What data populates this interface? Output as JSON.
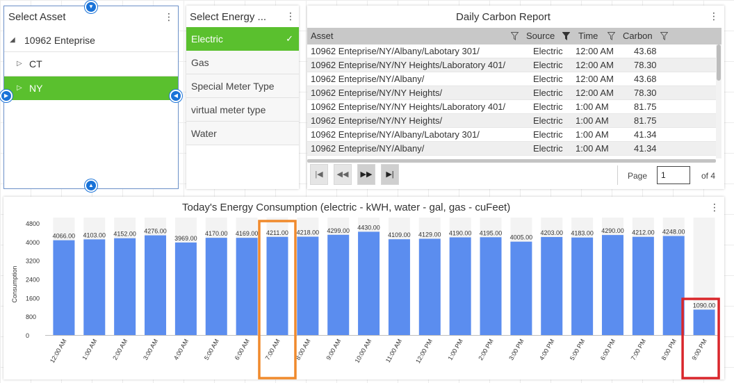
{
  "asset_panel": {
    "title": "Select Asset",
    "tree": {
      "root": "10962 Enteprise",
      "children": [
        "CT",
        "NY"
      ],
      "selected": "NY"
    }
  },
  "energy_panel": {
    "title": "Select Energy ...",
    "items": [
      "Electric",
      "Gas",
      "Special Meter Type",
      "virtual meter type",
      "Water"
    ],
    "selected": "Electric"
  },
  "report_panel": {
    "title": "Daily Carbon Report",
    "columns": [
      "Asset",
      "Source",
      "Time",
      "Carbon"
    ],
    "rows": [
      [
        "10962 Enteprise/NY/Albany/Labotary 301/",
        "Electric",
        "12:00 AM",
        "43.68"
      ],
      [
        "10962 Enteprise/NY/NY Heights/Laboratory 401/",
        "Electric",
        "12:00 AM",
        "78.30"
      ],
      [
        "10962 Enteprise/NY/Albany/",
        "Electric",
        "12:00 AM",
        "43.68"
      ],
      [
        "10962 Enteprise/NY/NY Heights/",
        "Electric",
        "12:00 AM",
        "78.30"
      ],
      [
        "10962 Enteprise/NY/NY Heights/Laboratory 401/",
        "Electric",
        "1:00 AM",
        "81.75"
      ],
      [
        "10962 Enteprise/NY/NY Heights/",
        "Electric",
        "1:00 AM",
        "81.75"
      ],
      [
        "10962 Enteprise/NY/Albany/Labotary 301/",
        "Electric",
        "1:00 AM",
        "41.34"
      ],
      [
        "10962 Enteprise/NY/Albany/",
        "Electric",
        "1:00 AM",
        "41.34"
      ]
    ],
    "pager": {
      "page_label": "Page",
      "page_value": "1",
      "of_label": "of 4"
    }
  },
  "chart_panel": {
    "accent_bar_color": "#5b8def",
    "selected_color": "#5ac02e"
  },
  "chart_data": {
    "type": "bar",
    "title": "Today's Energy Consumption (electric - kWH, water - gal, gas - cuFeet)",
    "ylabel": "Consumption",
    "yticks": [
      "4800",
      "4000",
      "3200",
      "2400",
      "1600",
      "800",
      "0"
    ],
    "ylim": [
      0,
      4800
    ],
    "categories": [
      "12:00 AM",
      "1:00 AM",
      "2:00 AM",
      "3:00 AM",
      "4:00 AM",
      "5:00 AM",
      "6:00 AM",
      "7:00 AM",
      "8:00 AM",
      "9:00 AM",
      "10:00 AM",
      "11:00 AM",
      "12:00 PM",
      "1:00 PM",
      "2:00 PM",
      "3:00 PM",
      "4:00 PM",
      "5:00 PM",
      "6:00 PM",
      "7:00 PM",
      "8:00 PM",
      "9:00 PM"
    ],
    "values": [
      4066,
      4103,
      4152,
      4276,
      3969,
      4170,
      4169,
      4211,
      4218,
      4299,
      4430,
      4109,
      4129,
      4190,
      4195,
      4005,
      4203,
      4183,
      4290,
      4212,
      4248,
      1090
    ],
    "value_labels": [
      "4066.00",
      "4103.00",
      "4152.00",
      "4276.00",
      "3969.00",
      "4170.00",
      "4169.00",
      "4211.00",
      "4218.00",
      "4299.00",
      "4430.00",
      "4109.00",
      "4129.00",
      "4190.00",
      "4195.00",
      "4005.00",
      "4203.00",
      "4183.00",
      "4290.00",
      "4212.00",
      "4248.00",
      "1090.00"
    ],
    "highlights": [
      {
        "category": "7:00 AM",
        "color": "#f08a2c"
      },
      {
        "category": "9:00 PM",
        "color": "#d9262b"
      }
    ]
  }
}
